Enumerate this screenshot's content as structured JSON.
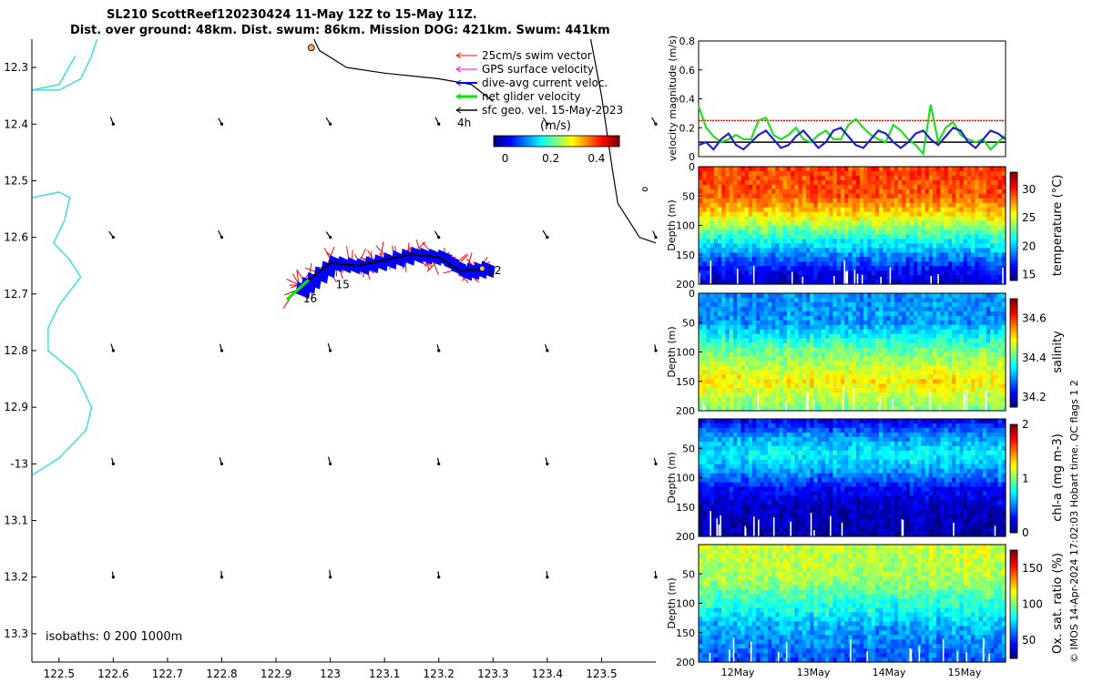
{
  "title": {
    "line1": "SL210 ScottReef120230424 11-May 12Z to 15-May 11Z.",
    "line2": "Dist. over ground: 48km. Dist. swum: 86km. Mission DOG: 421km. Swum: 441km"
  },
  "credit": "© IMOS 14-Apr-2024 17:02:03 Hobart time. QC flags 1  2",
  "colors": {
    "swim_vector": "#ff0000",
    "gps_surface": "#ff00ff",
    "dive_avg": "#0000ff",
    "net_glider": "#00ee00",
    "sfc_geo": "#000000",
    "coastline": "#33dddd",
    "isobath": "#000000"
  },
  "chart_data": [
    {
      "type": "map",
      "xlim": [
        122.45,
        123.6
      ],
      "ylim": [
        -13.35,
        -12.25
      ],
      "x_ticks": [
        122.5,
        122.6,
        122.7,
        122.8,
        122.9,
        123,
        123.1,
        123.2,
        123.3,
        123.4,
        123.5
      ],
      "x_tick_labels": [
        "122.5",
        "122.6",
        "122.7",
        "122.8",
        "122.9",
        "123",
        "123.1",
        "123.2",
        "123.3",
        "123.4",
        "123.5"
      ],
      "y_ticks": [
        -12.3,
        -12.4,
        -12.5,
        -12.6,
        -12.7,
        -12.8,
        -12.9,
        -13.0,
        -13.1,
        -13.2,
        -13.3
      ],
      "y_tick_labels": [
        "12.3",
        "12.4",
        "12.5",
        "12.6",
        "12.7",
        "12.8",
        "12.9",
        "-13",
        "13.1",
        "13.2",
        "13.3"
      ],
      "legend": {
        "placement": "top-right",
        "entries": [
          "25cm/s swim vector",
          "GPS surface velocity",
          "dive-avg current veloc.",
          "net glider velocity",
          "sfc geo. vel. 15-May-2023"
        ]
      },
      "vector_scale_label": "4h",
      "colorbar": {
        "label": "(m/s)",
        "ticks": [
          0,
          0.2,
          0.4
        ],
        "tick_labels": [
          "0",
          "0.2",
          "0.4"
        ],
        "range": [
          -0.05,
          0.5
        ]
      },
      "isobaths_label": "isobaths: 0   200  1000m",
      "track": {
        "lon": [
          123.28,
          123.24,
          123.2,
          123.15,
          123.1,
          123.05,
          123.0,
          122.96,
          122.93
        ],
        "lat": [
          -12.655,
          -12.66,
          -12.635,
          -12.63,
          -12.64,
          -12.65,
          -12.645,
          -12.675,
          -12.7
        ]
      },
      "track_labels": [
        {
          "text": "12",
          "lon": 123.29,
          "lat": -12.665
        },
        {
          "text": "15",
          "lon": 123.01,
          "lat": -12.69
        },
        {
          "text": "16",
          "lon": 122.95,
          "lat": -12.715
        }
      ],
      "start_marker": {
        "lon": 122.965,
        "lat": -12.265
      }
    },
    {
      "type": "line",
      "ylabel": "velocity magnitude (m/s)",
      "ylim": [
        0,
        0.8
      ],
      "y_ticks": [
        0,
        0.2,
        0.4,
        0.6,
        0.8
      ],
      "y_tick_labels": [
        "0",
        "0.2",
        "0.4",
        "0.6",
        "0.8"
      ],
      "reference_lines": [
        0.25,
        0.1
      ],
      "series": [
        {
          "color": "green",
          "values": [
            0.35,
            0.2,
            0.14,
            0.1,
            0.12,
            0.15,
            0.12,
            0.12,
            0.25,
            0.27,
            0.15,
            0.12,
            0.15,
            0.2,
            0.12,
            0.1,
            0.15,
            0.18,
            0.12,
            0.12,
            0.22,
            0.26,
            0.2,
            0.15,
            0.12,
            0.1,
            0.22,
            0.18,
            0.12,
            0.08,
            0.02,
            0.36,
            0.1,
            0.2,
            0.24,
            0.15,
            0.12,
            0.1,
            0.12,
            0.05,
            0.1,
            0.15
          ]
        },
        {
          "color": "blue",
          "values": [
            0.08,
            0.1,
            0.05,
            0.12,
            0.16,
            0.08,
            0.05,
            0.1,
            0.15,
            0.18,
            0.12,
            0.06,
            0.08,
            0.14,
            0.18,
            0.12,
            0.06,
            0.1,
            0.18,
            0.2,
            0.14,
            0.08,
            0.06,
            0.12,
            0.18,
            0.16,
            0.1,
            0.06,
            0.1,
            0.16,
            0.18,
            0.12,
            0.08,
            0.14,
            0.2,
            0.18,
            0.1,
            0.06,
            0.12,
            0.18,
            0.16,
            0.12
          ]
        }
      ]
    },
    {
      "type": "heatmap",
      "ylabel": "Depth (m)",
      "ylim": [
        0,
        200
      ],
      "y_ticks": [
        0,
        50,
        100,
        150,
        200
      ],
      "y_tick_labels": [
        "0",
        "50",
        "100",
        "150",
        "200"
      ],
      "colorbar_label": "temperature (°C)",
      "colorbar_ticks": [
        15,
        20,
        25,
        30
      ],
      "colorbar_tick_labels": [
        "15",
        "20",
        "25",
        "30"
      ],
      "crange": [
        14,
        33
      ],
      "profile_depth": [
        0,
        50,
        80,
        110,
        140,
        170,
        200
      ],
      "profile_values": [
        29.5,
        29.0,
        26.5,
        23,
        20,
        17,
        15
      ]
    },
    {
      "type": "heatmap",
      "ylabel": "Depth (m)",
      "ylim": [
        0,
        200
      ],
      "y_ticks": [
        0,
        50,
        100,
        150,
        200
      ],
      "y_tick_labels": [
        "0",
        "50",
        "100",
        "150",
        "200"
      ],
      "colorbar_label": "salinity",
      "colorbar_ticks": [
        34.2,
        34.4,
        34.6
      ],
      "colorbar_tick_labels": [
        "34.2",
        "34.4",
        "34.6"
      ],
      "crange": [
        34.15,
        34.7
      ],
      "profile_depth": [
        0,
        50,
        100,
        150,
        200
      ],
      "profile_values": [
        34.3,
        34.3,
        34.42,
        34.5,
        34.42
      ]
    },
    {
      "type": "heatmap",
      "ylabel": "Depth (m)",
      "ylim": [
        0,
        200
      ],
      "y_ticks": [
        50,
        100,
        150,
        200
      ],
      "y_tick_labels": [
        "50",
        "100",
        "150",
        "200"
      ],
      "colorbar_label": "chl-a (mg m-3)",
      "colorbar_ticks": [
        0,
        1,
        2
      ],
      "colorbar_tick_labels": [
        "0",
        "1",
        "2"
      ],
      "crange": [
        0,
        2
      ],
      "profile_depth": [
        0,
        30,
        60,
        90,
        120,
        150,
        200
      ],
      "profile_values": [
        0.2,
        0.55,
        0.75,
        0.55,
        0.25,
        0.12,
        0.08
      ]
    },
    {
      "type": "heatmap",
      "ylabel": "Depth (m)",
      "xlabel": "Ox. sat. ratio (%)",
      "ylim": [
        0,
        200
      ],
      "y_ticks": [
        50,
        100,
        150,
        200
      ],
      "y_tick_labels": [
        "50",
        "100",
        "150",
        "200"
      ],
      "colorbar_label": "Ox. sat. ratio (%)",
      "colorbar_ticks": [
        50,
        100,
        150
      ],
      "colorbar_tick_labels": [
        "50",
        "100",
        "150"
      ],
      "crange": [
        25,
        175
      ],
      "profile_depth": [
        0,
        60,
        100,
        140,
        200
      ],
      "profile_values": [
        112,
        105,
        88,
        70,
        55
      ],
      "x_tick_labels": [
        "12May",
        "13May",
        "14May",
        "15May"
      ]
    }
  ]
}
